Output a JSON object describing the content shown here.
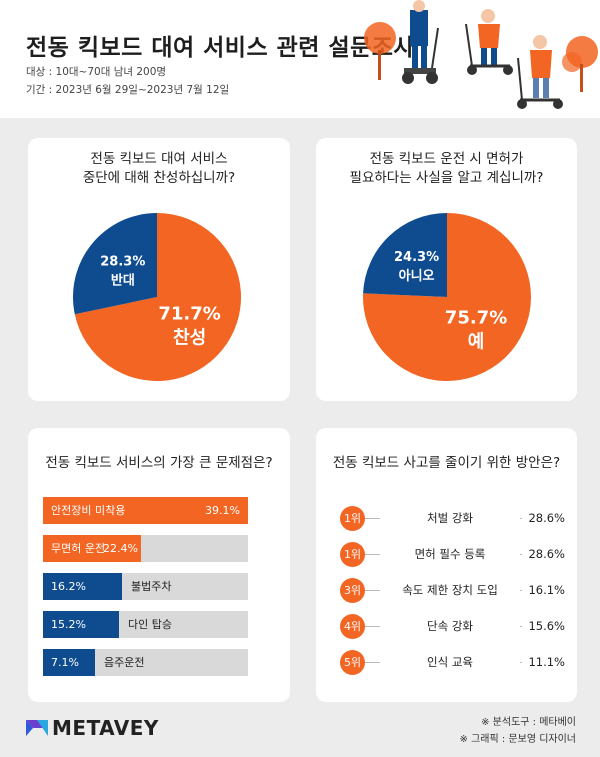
{
  "header": {
    "title": "전동 킥보드 대여 서비스 관련 설문조사",
    "subject": "대상 : 10대~70대 남녀 200명",
    "period": "기간 : 2023년 6월 29일~2023년 7월 12일"
  },
  "chart_data": [
    {
      "type": "pie",
      "title_line1": "전동 킥보드 대여 서비스",
      "title_line2": "중단에 대해 찬성하십니까?",
      "slices": [
        {
          "label": "찬성",
          "value": 71.7,
          "value_label": "71.7%",
          "color": "#f26522"
        },
        {
          "label": "반대",
          "value": 28.3,
          "value_label": "28.3%",
          "color": "#0f4c8f"
        }
      ]
    },
    {
      "type": "pie",
      "title_line1": "전동 킥보드 운전 시 면허가",
      "title_line2": "필요하다는 사실을 알고 계십니까?",
      "slices": [
        {
          "label": "예",
          "value": 75.7,
          "value_label": "75.7%",
          "color": "#f26522"
        },
        {
          "label": "아니오",
          "value": 24.3,
          "value_label": "24.3%",
          "color": "#0f4c8f"
        }
      ]
    },
    {
      "type": "bar",
      "title": "전동 킥보드 서비스의 가장 큰 문제점은?",
      "categories": [
        "안전장비 미착용",
        "무면허 운전",
        "불법주차",
        "다인 탑승",
        "음주운전"
      ],
      "values": [
        39.1,
        22.4,
        16.2,
        15.2,
        7.1
      ],
      "value_labels": [
        "39.1%",
        "22.4%",
        "16.2%",
        "15.2%",
        "7.1%"
      ],
      "colors": [
        "#f26522",
        "#f26522",
        "#0f4c8f",
        "#0f4c8f",
        "#0f4c8f"
      ],
      "xlim": [
        0,
        39.1
      ]
    },
    {
      "type": "table",
      "title": "전동 킥보드 사고를 줄이기 위한 방안은?",
      "rows": [
        {
          "rank": "1위",
          "label": "처벌 강화",
          "value": "28.6%"
        },
        {
          "rank": "1위",
          "label": "면허 필수 등록",
          "value": "28.6%"
        },
        {
          "rank": "3위",
          "label": "속도 제한 장치 도입",
          "value": "16.1%"
        },
        {
          "rank": "4위",
          "label": "단속 강화",
          "value": "15.6%"
        },
        {
          "rank": "5위",
          "label": "인식 교육",
          "value": "11.1%"
        }
      ]
    }
  ],
  "footer": {
    "logo_text": "METAVEY",
    "credit1": "※ 분석도구 : 메타베이",
    "credit2": "※ 그래픽 : 문보영 디자이너"
  },
  "colors": {
    "accent": "#f26522",
    "primary": "#0f4c8f",
    "track": "#d9d9d9"
  }
}
